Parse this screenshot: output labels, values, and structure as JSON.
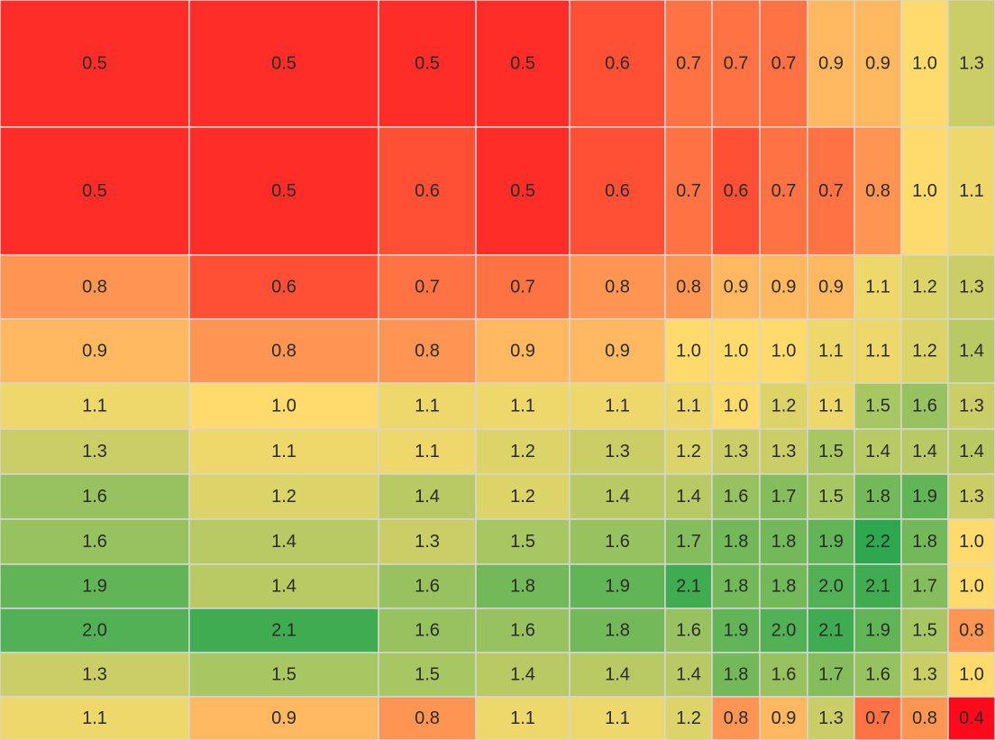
{
  "chart_data": {
    "type": "heatmap",
    "title": "",
    "xlabel": "",
    "ylabel": "",
    "grid": true,
    "legend": "none",
    "color_scale": {
      "min": 0.4,
      "mid": 1.0,
      "max": 2.2,
      "stops": [
        "#ff0a1a",
        "#ffdb6e",
        "#2ea84f"
      ]
    },
    "rows": [
      [
        0.5,
        0.5,
        0.5,
        0.5,
        0.6,
        0.7,
        0.7,
        0.7,
        0.9,
        0.9,
        1.0,
        1.3
      ],
      [
        0.5,
        0.5,
        0.6,
        0.5,
        0.6,
        0.7,
        0.6,
        0.7,
        0.7,
        0.8,
        1.0,
        1.1
      ],
      [
        0.8,
        0.6,
        0.7,
        0.7,
        0.8,
        0.8,
        0.9,
        0.9,
        0.9,
        1.1,
        1.2,
        1.3
      ],
      [
        0.9,
        0.8,
        0.8,
        0.9,
        0.9,
        1.0,
        1.0,
        1.0,
        1.1,
        1.1,
        1.2,
        1.4
      ],
      [
        1.1,
        1.0,
        1.1,
        1.1,
        1.1,
        1.1,
        1.0,
        1.2,
        1.1,
        1.5,
        1.6,
        1.3
      ],
      [
        1.3,
        1.1,
        1.1,
        1.2,
        1.3,
        1.2,
        1.3,
        1.3,
        1.5,
        1.4,
        1.4,
        1.4
      ],
      [
        1.6,
        1.2,
        1.4,
        1.2,
        1.4,
        1.4,
        1.6,
        1.7,
        1.5,
        1.8,
        1.9,
        1.3
      ],
      [
        1.6,
        1.4,
        1.3,
        1.5,
        1.6,
        1.7,
        1.8,
        1.8,
        1.9,
        2.2,
        1.8,
        1.0
      ],
      [
        1.9,
        1.4,
        1.6,
        1.8,
        1.9,
        2.1,
        1.8,
        1.8,
        2.0,
        2.1,
        1.7,
        1.0
      ],
      [
        2.0,
        2.1,
        1.6,
        1.6,
        1.8,
        1.6,
        1.9,
        2.0,
        2.1,
        1.9,
        1.5,
        0.8
      ],
      [
        1.3,
        1.5,
        1.5,
        1.4,
        1.4,
        1.4,
        1.8,
        1.6,
        1.7,
        1.6,
        1.3,
        1.0
      ],
      [
        1.1,
        0.9,
        0.8,
        1.1,
        1.1,
        1.2,
        0.8,
        0.9,
        1.3,
        0.7,
        0.8,
        0.4
      ]
    ]
  }
}
